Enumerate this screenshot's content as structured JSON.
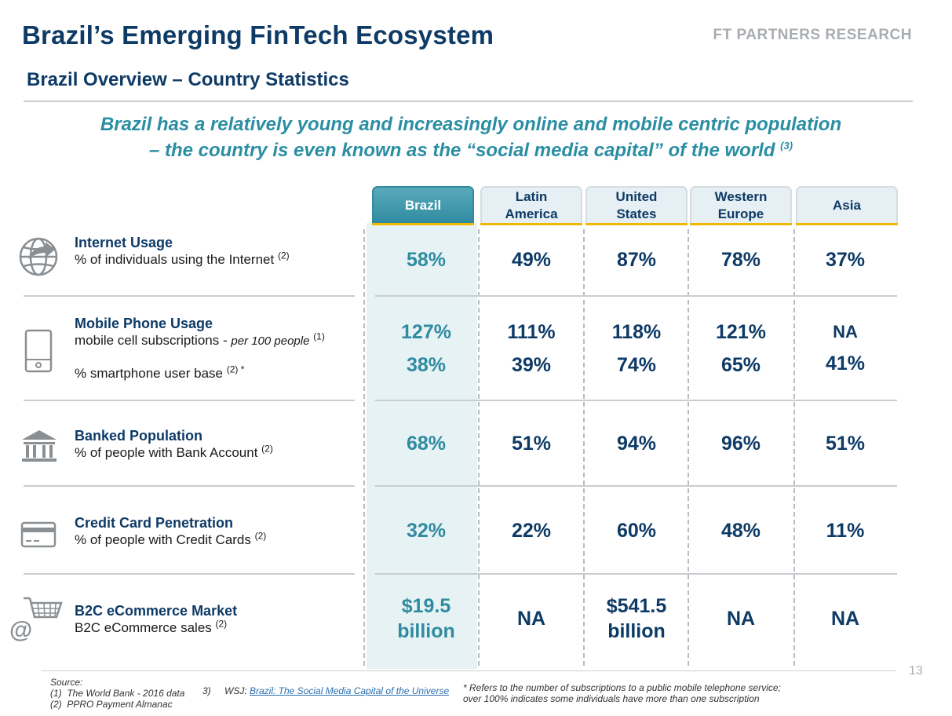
{
  "header": {
    "title": "Brazil’s Emerging FinTech Ecosystem",
    "brand": "FT PARTNERS RESEARCH",
    "subtitle": "Brazil Overview – Country Statistics"
  },
  "tagline": {
    "line1": "Brazil has a relatively young and increasingly online and mobile centric population",
    "line2": "– the country is even known as the “social media capital” of the world",
    "ref": "(3)"
  },
  "columns": [
    "Brazil",
    "Latin America",
    "United States",
    "Western Europe",
    "Asia"
  ],
  "columns_display": {
    "brazil": "Brazil",
    "latam_1": "Latin",
    "latam_2": "America",
    "us_1": "United",
    "us_2": "States",
    "we_1": "Western",
    "we_2": "Europe",
    "asia": "Asia"
  },
  "rows": {
    "internet": {
      "title": "Internet Usage",
      "desc": "% of individuals using the Internet",
      "ref": "(2)",
      "values": [
        "58%",
        "49%",
        "87%",
        "78%",
        "37%"
      ]
    },
    "mobile": {
      "title": "Mobile Phone Usage",
      "desc1": "mobile cell subscriptions - ",
      "desc1_italic": "per 100 people",
      "ref1": "(1)",
      "desc2": "% smartphone user base",
      "ref2": "(2) *",
      "values1": [
        "127%",
        "111%",
        "118%",
        "121%",
        "NA"
      ],
      "values2": [
        "38%",
        "39%",
        "74%",
        "65%",
        "41%"
      ]
    },
    "banked": {
      "title": "Banked Population",
      "desc": "% of people with Bank Account",
      "ref": "(2)",
      "values": [
        "68%",
        "51%",
        "94%",
        "96%",
        "51%"
      ]
    },
    "credit": {
      "title": "Credit Card Penetration",
      "desc": "% of people with Credit Cards",
      "ref": "(2)",
      "values": [
        "32%",
        "22%",
        "60%",
        "48%",
        "11%"
      ]
    },
    "ecommerce": {
      "title": "B2C eCommerce Market",
      "desc": "B2C eCommerce sales",
      "ref": "(2)",
      "values_line1": [
        "$19.5",
        "NA",
        "$541.5",
        "NA",
        "NA"
      ],
      "values_line2": [
        "billion",
        "",
        "billion",
        "",
        ""
      ]
    }
  },
  "icons": {
    "ecommerce_at": "@"
  },
  "footer": {
    "source_label": "Source:",
    "source1_num": "(1)",
    "source1": "The World Bank - 2016 data",
    "source2_num": "(2)",
    "source2": "PPRO Payment Almanac",
    "source3_num": "3)",
    "source3_prefix": "WSJ: ",
    "source3_link": "Brazil: The Social Media Capital of the Universe",
    "note1": "* Refers to the number of subscriptions to a public mobile telephone service;",
    "note2": "over 100% indicates some individuals have more than one subscription"
  },
  "page_number": "13",
  "colors": {
    "navy": "#0e3a66",
    "teal": "#2f8ba0",
    "brazil_column_bg": "#e7f2f4",
    "header_underline": "#f0b800"
  }
}
